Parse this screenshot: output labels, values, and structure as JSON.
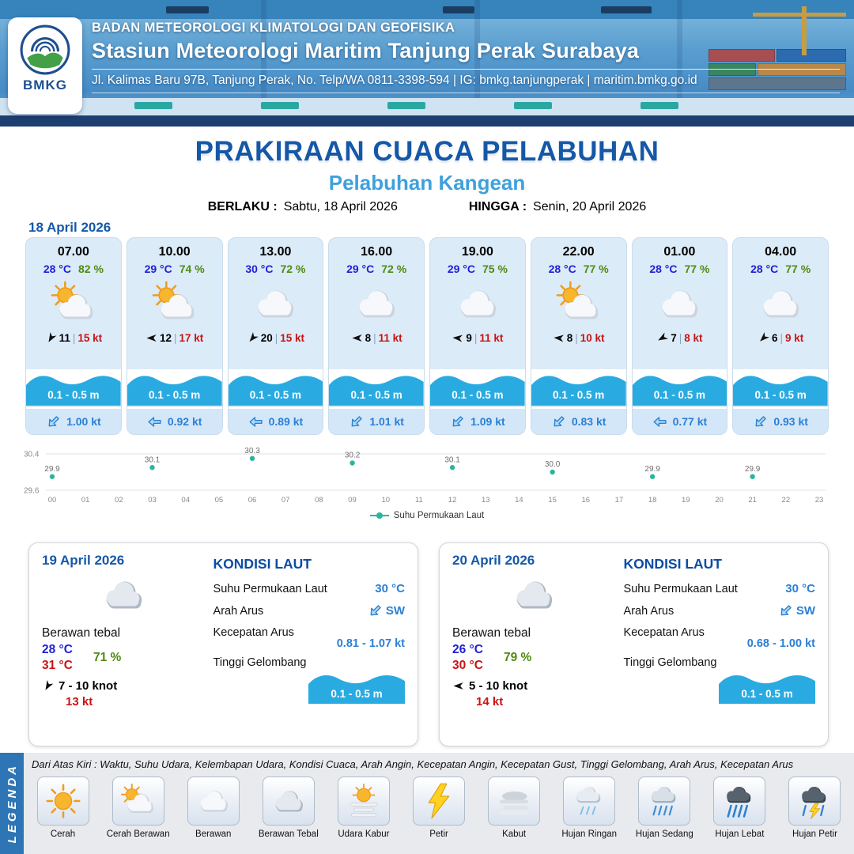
{
  "header": {
    "logo_text": "BMKG",
    "org": "BADAN METEOROLOGI KLIMATOLOGI DAN GEOFISIKA",
    "station": "Stasiun Meteorologi Maritim Tanjung Perak Surabaya",
    "address": "Jl. Kalimas Baru 97B, Tanjung Perak, No. Telp/WA 0811-3398-594 | IG: bmkg.tanjungperak | maritim.bmkg.go.id"
  },
  "title": {
    "main": "PRAKIRAAN CUACA PELABUHAN",
    "sub": "Pelabuhan Kangean",
    "berlaku_label": "BERLAKU :",
    "berlaku_value": "Sabtu, 18 April 2026",
    "hingga_label": "HINGGA :",
    "hingga_value": "Senin, 20 April 2026"
  },
  "forecast": {
    "date": "18 April 2026",
    "cards": [
      {
        "time": "07.00",
        "temp": "28 °C",
        "rh": "82 %",
        "icon": "cerah-berawan",
        "wind": "11",
        "gust": "15 kt",
        "wind_deg": 120,
        "wave": "0.1 - 0.5 m",
        "current": "1.00 kt",
        "cur_deg": 135
      },
      {
        "time": "10.00",
        "temp": "29 °C",
        "rh": "74 %",
        "icon": "cerah-berawan",
        "wind": "12",
        "gust": "17 kt",
        "wind_deg": 180,
        "wave": "0.1 - 0.5 m",
        "current": "0.92 kt",
        "cur_deg": 180
      },
      {
        "time": "13.00",
        "temp": "30 °C",
        "rh": "72 %",
        "icon": "berawan",
        "wind": "20",
        "gust": "15 kt",
        "wind_deg": 130,
        "wave": "0.1 - 0.5 m",
        "current": "0.89 kt",
        "cur_deg": 180
      },
      {
        "time": "16.00",
        "temp": "29 °C",
        "rh": "72 %",
        "icon": "berawan",
        "wind": "8",
        "gust": "11 kt",
        "wind_deg": 180,
        "wave": "0.1 - 0.5 m",
        "current": "1.01 kt",
        "cur_deg": 135
      },
      {
        "time": "19.00",
        "temp": "29 °C",
        "rh": "75 %",
        "icon": "berawan",
        "wind": "9",
        "gust": "11 kt",
        "wind_deg": 185,
        "wave": "0.1 - 0.5 m",
        "current": "1.09 kt",
        "cur_deg": 135
      },
      {
        "time": "22.00",
        "temp": "28 °C",
        "rh": "77 %",
        "icon": "cerah-berawan",
        "wind": "8",
        "gust": "10 kt",
        "wind_deg": 185,
        "wave": "0.1 - 0.5 m",
        "current": "0.83 kt",
        "cur_deg": 135
      },
      {
        "time": "01.00",
        "temp": "28 °C",
        "rh": "77 %",
        "icon": "berawan",
        "wind": "7",
        "gust": "8 kt",
        "wind_deg": 150,
        "wave": "0.1 - 0.5 m",
        "current": "0.77 kt",
        "cur_deg": 180
      },
      {
        "time": "04.00",
        "temp": "28 °C",
        "rh": "77 %",
        "icon": "berawan",
        "wind": "6",
        "gust": "9 kt",
        "wind_deg": 135,
        "wave": "0.1 - 0.5 m",
        "current": "0.93 kt",
        "cur_deg": 135
      }
    ]
  },
  "chart_data": {
    "type": "scatter",
    "legend": "Suhu Permukaan Laut",
    "ylabel": "",
    "xlabel": "",
    "ylim": [
      29.6,
      30.4
    ],
    "x_ticks": [
      "00",
      "01",
      "02",
      "03",
      "04",
      "05",
      "06",
      "07",
      "08",
      "09",
      "10",
      "11",
      "12",
      "13",
      "14",
      "15",
      "16",
      "17",
      "18",
      "19",
      "20",
      "21",
      "22",
      "23"
    ],
    "points": [
      {
        "x": 0,
        "y": 29.9
      },
      {
        "x": 3,
        "y": 30.1
      },
      {
        "x": 6,
        "y": 30.3
      },
      {
        "x": 9,
        "y": 30.2
      },
      {
        "x": 12,
        "y": 30.1
      },
      {
        "x": 15,
        "y": 30.0
      },
      {
        "x": 18,
        "y": 29.9
      },
      {
        "x": 21,
        "y": 29.9
      }
    ],
    "point_color": "#2bb5a0",
    "grid": "horizontal-minmax"
  },
  "daily": [
    {
      "date": "19 April 2026",
      "icon": "berawan-tebal",
      "condition": "Berawan tebal",
      "temp_min": "28 °C",
      "temp_max": "31 °C",
      "rh": "71 %",
      "wind_deg": 120,
      "wind_range": "7  - 10 knot",
      "gust": "13 kt",
      "sea": {
        "title": "KONDISI LAUT",
        "sst_label": "Suhu Permukaan Laut",
        "sst": "30 °C",
        "dir_label": "Arah Arus",
        "dir": "SW",
        "dir_deg": 135,
        "speed_label": "Kecepatan Arus",
        "speed": "0.81  - 1.07 kt",
        "wave_label": "Tinggi Gelombang",
        "wave": "0.1 - 0.5 m"
      }
    },
    {
      "date": "20 April 2026",
      "icon": "berawan-tebal",
      "condition": "Berawan tebal",
      "temp_min": "26 °C",
      "temp_max": "30 °C",
      "rh": "79 %",
      "wind_deg": 180,
      "wind_range": "5  - 10 knot",
      "gust": "14 kt",
      "sea": {
        "title": "KONDISI LAUT",
        "sst_label": "Suhu Permukaan Laut",
        "sst": "30 °C",
        "dir_label": "Arah Arus",
        "dir": "SW",
        "dir_deg": 135,
        "speed_label": "Kecepatan Arus",
        "speed": "0.68  - 1.00 kt",
        "wave_label": "Tinggi Gelombang",
        "wave": "0.1 - 0.5 m"
      }
    }
  ],
  "legend": {
    "title": "LEGENDA",
    "note": "Dari Atas Kiri : Waktu, Suhu Udara, Kelembapan Udara, Kondisi Cuaca, Arah Angin, Kecepatan Angin, Kecepatan Gust, Tinggi Gelombang, Arah Arus, Kecepatan Arus",
    "items": [
      {
        "label": "Cerah",
        "icon": "cerah"
      },
      {
        "label": "Cerah Berawan",
        "icon": "cerah-berawan"
      },
      {
        "label": "Berawan",
        "icon": "berawan"
      },
      {
        "label": "Berawan Tebal",
        "icon": "berawan-tebal"
      },
      {
        "label": "Udara Kabur",
        "icon": "udara-kabur"
      },
      {
        "label": "Petir",
        "icon": "petir"
      },
      {
        "label": "Kabut",
        "icon": "kabut"
      },
      {
        "label": "Hujan Ringan",
        "icon": "hujan-ringan"
      },
      {
        "label": "Hujan Sedang",
        "icon": "hujan-sedang"
      },
      {
        "label": "Hujan Lebat",
        "icon": "hujan-lebat"
      },
      {
        "label": "Hujan Petir",
        "icon": "hujan-petir"
      }
    ]
  },
  "colors": {
    "accent_blue": "#1558a8",
    "sub_blue": "#3fa0dc",
    "temp_blue": "#1f1fd6",
    "rh_green": "#4f8a10",
    "gust_red": "#c81414",
    "wave_blue": "#29abe2",
    "current_blue": "#2b7fd4",
    "sst_teal": "#2bb5a0",
    "legend_bar_blue": "#2e75b6"
  }
}
